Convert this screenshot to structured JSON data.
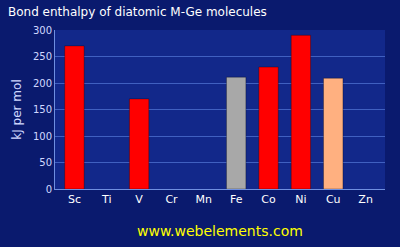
{
  "chart_data": {
    "type": "bar",
    "title": "Bond enthalpy of diatomic M-Ge molecules",
    "y_label": "kJ per mol",
    "annotations": [
      "www.webelements.com"
    ],
    "categories": [
      "Sc",
      "Ti",
      "V",
      "Cr",
      "Mn",
      "Fe",
      "Co",
      "Ni",
      "Cu",
      "Zn"
    ],
    "values": [
      270,
      null,
      170,
      null,
      null,
      211,
      230,
      290,
      209,
      null
    ],
    "colors": [
      "#ff0000",
      "#ff0000",
      "#ff0000",
      "#ff0000",
      "#ff0000",
      "#a8a8a8",
      "#ff0000",
      "#ff0000",
      "#ffb080",
      "#ff0000"
    ],
    "ylim": [
      0,
      300
    ],
    "yticks": [
      0,
      50,
      100,
      150,
      200,
      250,
      300
    ],
    "grid": true
  }
}
